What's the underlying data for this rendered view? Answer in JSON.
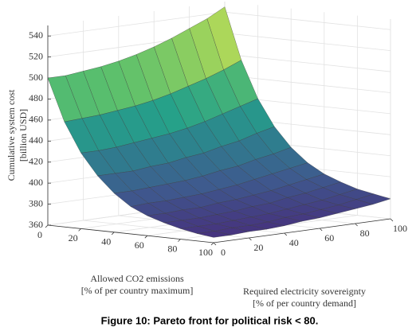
{
  "chart_data": {
    "type": "surface",
    "caption": "Figure 10: Pareto front for political risk < 80.",
    "xlabel": [
      "Allowed CO2 emissions",
      "[% of per country maximum]"
    ],
    "ylabel": [
      "Required electricity sovereignty",
      "[% of per country demand]"
    ],
    "zlabel": [
      "Cumulative system cost",
      "[billion USD]"
    ],
    "x": [
      0,
      10,
      20,
      30,
      40,
      50,
      60,
      70,
      80,
      90,
      100
    ],
    "y": [
      0,
      10,
      20,
      30,
      40,
      50,
      60,
      70,
      80,
      90,
      100
    ],
    "z": [
      [
        500,
        500,
        502,
        504,
        507,
        511,
        516,
        522,
        529,
        536,
        545
      ],
      [
        460,
        461,
        462,
        464,
        466,
        469,
        473,
        478,
        483,
        489,
        496
      ],
      [
        432,
        432,
        433,
        435,
        437,
        439,
        442,
        446,
        451,
        456,
        461
      ],
      [
        412,
        412,
        412,
        414,
        415,
        418,
        420,
        424,
        427,
        432,
        436
      ],
      [
        397,
        397,
        398,
        399,
        400,
        402,
        405,
        407,
        411,
        414,
        418
      ],
      [
        386,
        387,
        387,
        388,
        389,
        391,
        393,
        396,
        399,
        402,
        405
      ],
      [
        379,
        379,
        380,
        380,
        382,
        383,
        385,
        387,
        390,
        393,
        396
      ],
      [
        374,
        374,
        374,
        375,
        376,
        378,
        379,
        382,
        384,
        387,
        390
      ],
      [
        370,
        370,
        370,
        371,
        372,
        373,
        375,
        377,
        379,
        382,
        385
      ],
      [
        367,
        367,
        368,
        368,
        369,
        371,
        372,
        374,
        376,
        379,
        382
      ],
      [
        365,
        365,
        366,
        366,
        367,
        369,
        370,
        372,
        374,
        376,
        379
      ]
    ],
    "xlim": [
      0,
      100
    ],
    "ylim": [
      0,
      100
    ],
    "zlim": [
      360,
      550
    ],
    "xticks": [
      0,
      20,
      40,
      60,
      80,
      100
    ],
    "yticks": [
      0,
      20,
      40,
      60,
      80,
      100
    ],
    "zticks": [
      360,
      380,
      400,
      420,
      440,
      460,
      480,
      500,
      520,
      540
    ],
    "colormap": [
      "#46337e",
      "#3e5a8e",
      "#2f7d8e",
      "#25a08a",
      "#5cc06c",
      "#a9d65a",
      "#dfe25e"
    ],
    "grid": true
  }
}
